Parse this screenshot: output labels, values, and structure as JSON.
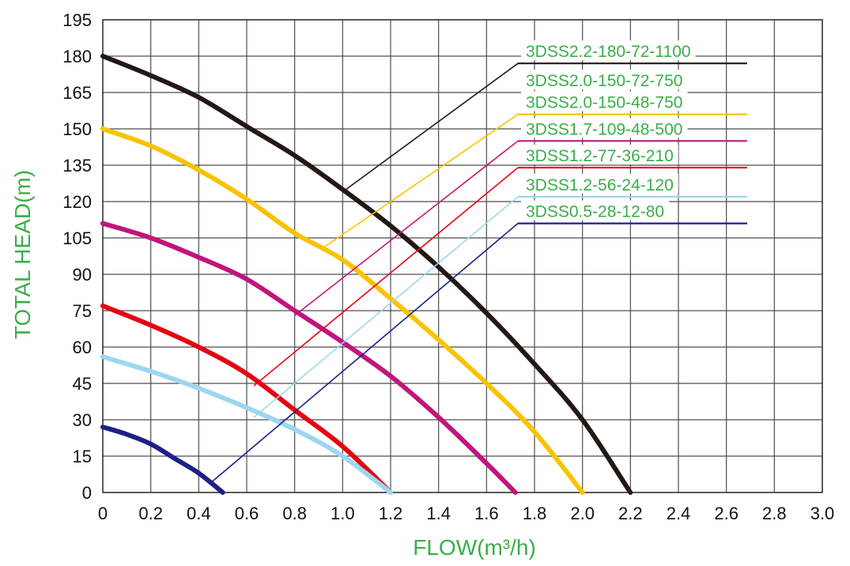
{
  "chart_data": {
    "type": "line",
    "title": "",
    "xlabel": "FLOW(m³/h)",
    "ylabel": "TOTAL HEAD(m)",
    "xlim": [
      0,
      3.0
    ],
    "ylim": [
      0,
      195
    ],
    "x_ticks": [
      "0",
      "0.2",
      "0.4",
      "0.6",
      "0.8",
      "1.0",
      "1.2",
      "1.4",
      "1.6",
      "1.8",
      "2.0",
      "2.2",
      "2.4",
      "2.6",
      "2.8",
      "3.0"
    ],
    "y_ticks": [
      "0",
      "15",
      "30",
      "45",
      "60",
      "75",
      "90",
      "105",
      "120",
      "135",
      "150",
      "165",
      "180",
      "195"
    ],
    "grid": true,
    "legend_placement": "right, with leader lines",
    "series": [
      {
        "name": "3DSS2.2-180-72-1100",
        "color": "#231815",
        "x": [
          0,
          0.2,
          0.4,
          0.6,
          0.8,
          1.0,
          1.2,
          1.4,
          1.6,
          1.8,
          2.0,
          2.2
        ],
        "y": [
          180,
          172,
          163,
          151,
          139,
          125,
          110,
          93,
          74,
          53,
          30,
          0
        ],
        "leader_at": [
          1.0,
          124
        ],
        "label_level": 177
      },
      {
        "name": "3DSS2.0-150-72-750",
        "color": "#231815",
        "x": [],
        "y": [],
        "label_only": true
      },
      {
        "name": "3DSS2.0-150-48-750",
        "color": "#f8c300",
        "x": [
          0,
          0.2,
          0.4,
          0.6,
          0.8,
          1.0,
          1.2,
          1.4,
          1.6,
          1.8,
          2.0
        ],
        "y": [
          150,
          143,
          133,
          121,
          107,
          96,
          80,
          63,
          45,
          25,
          0
        ],
        "leader_at": [
          0.92,
          101
        ],
        "label_level": 156
      },
      {
        "name": "3DSS1.7-109-48-500",
        "color": "#c0157c",
        "x": [
          0,
          0.2,
          0.4,
          0.6,
          0.8,
          1.0,
          1.2,
          1.4,
          1.6,
          1.72
        ],
        "y": [
          111,
          105,
          97,
          88,
          75,
          62,
          48,
          31,
          12,
          0
        ],
        "leader_at": [
          0.8,
          73
        ],
        "label_level": 145
      },
      {
        "name": "3DSS1.2-77-36-210",
        "color": "#e60012",
        "x": [
          0,
          0.2,
          0.4,
          0.6,
          0.8,
          1.0,
          1.2
        ],
        "y": [
          77,
          69,
          60,
          49,
          34,
          19,
          0
        ],
        "leader_at": [
          0.63,
          44
        ],
        "label_level": 134
      },
      {
        "name": "3DSS1.2-56-24-120",
        "color": "#9dd6f0",
        "x": [
          0,
          0.2,
          0.4,
          0.6,
          0.8,
          1.0,
          1.2
        ],
        "y": [
          56,
          50,
          43,
          35,
          26,
          15,
          0
        ],
        "leader_at": [
          0.63,
          31
        ],
        "label_level": 122
      },
      {
        "name": "3DSS0.5-28-12-80",
        "color": "#1d2088",
        "x": [
          0,
          0.1,
          0.2,
          0.3,
          0.4,
          0.5
        ],
        "y": [
          27,
          24,
          20,
          14,
          8,
          0
        ],
        "leader_at": [
          0.45,
          4
        ],
        "label_level": 111
      }
    ]
  }
}
